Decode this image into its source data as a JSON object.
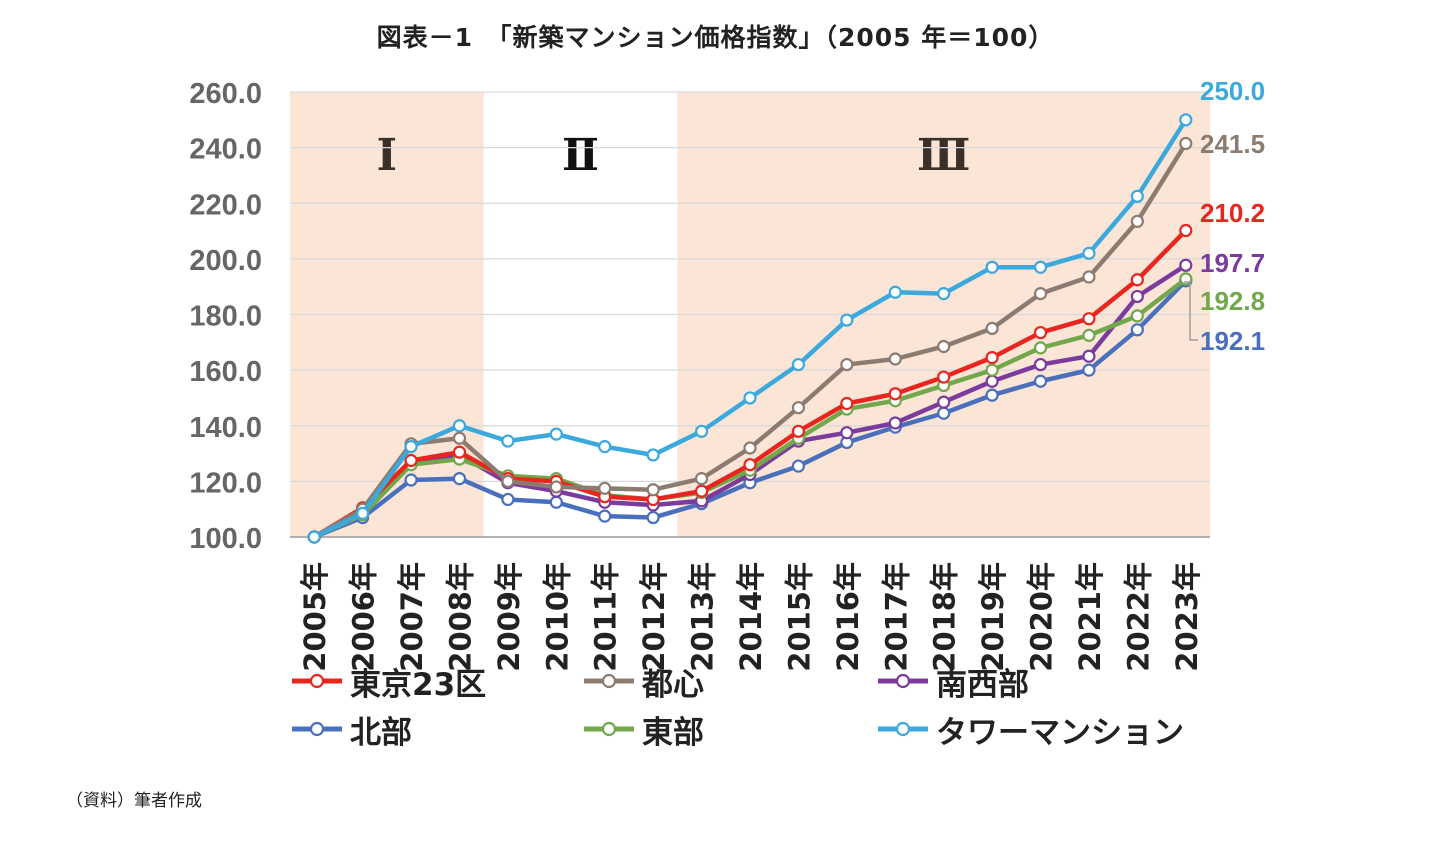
{
  "title": "図表－1　「新築マンション価格指数」（2005 年＝100）",
  "source": "（資料）筆者作成",
  "chart_data": {
    "type": "line",
    "title": "図表－1　「新築マンション価格指数」（2005 年＝100）",
    "categories": [
      "2005年",
      "2006年",
      "2007年",
      "2008年",
      "2009年",
      "2010年",
      "2011年",
      "2012年",
      "2013年",
      "2014年",
      "2015年",
      "2016年",
      "2017年",
      "2018年",
      "2019年",
      "2020年",
      "2021年",
      "2022年",
      "2023年"
    ],
    "ylim": [
      100,
      260
    ],
    "yticks": [
      "100.0",
      "120.0",
      "140.0",
      "160.0",
      "180.0",
      "200.0",
      "220.0",
      "240.0",
      "260.0"
    ],
    "grid": true,
    "legend_position": "bottom",
    "periods": [
      {
        "label": "Ⅰ",
        "start": "2005年",
        "end": "2008年",
        "shaded": true
      },
      {
        "label": "Ⅱ",
        "start": "2009年",
        "end": "2012年",
        "shaded": false
      },
      {
        "label": "Ⅲ",
        "start": "2013年",
        "end": "2023年",
        "shaded": true
      }
    ],
    "series": [
      {
        "name": "東京23区",
        "color": "#e8261f",
        "values": [
          100,
          110.5,
          127.5,
          130.5,
          121.0,
          120.0,
          114.5,
          113.5,
          116.5,
          126.0,
          138.0,
          148.0,
          151.5,
          157.5,
          164.5,
          173.5,
          178.5,
          192.5,
          210.2
        ],
        "end_label": "210.2"
      },
      {
        "name": "都心",
        "color": "#8c7b71",
        "values": [
          100,
          110.0,
          133.5,
          135.5,
          120.0,
          118.0,
          117.5,
          117.0,
          121.0,
          132.0,
          146.5,
          162.0,
          164.0,
          168.5,
          175.0,
          187.5,
          193.5,
          213.5,
          241.5
        ],
        "end_label": "241.5"
      },
      {
        "name": "南西部",
        "color": "#7b3b9c",
        "values": [
          100,
          108.5,
          126.5,
          129.5,
          119.5,
          116.5,
          112.5,
          111.5,
          113.0,
          122.5,
          134.5,
          137.5,
          141.0,
          148.5,
          156.0,
          162.0,
          165.0,
          186.5,
          197.7
        ],
        "end_label": "197.7"
      },
      {
        "name": "北部",
        "color": "#4a6fbd",
        "values": [
          100,
          107.0,
          120.5,
          121.0,
          113.5,
          112.5,
          107.5,
          107.0,
          112.0,
          119.5,
          125.5,
          134.0,
          139.5,
          144.5,
          151.0,
          156.0,
          160.0,
          174.5,
          192.1
        ],
        "end_label": "192.1"
      },
      {
        "name": "東部",
        "color": "#72a84b",
        "values": [
          100,
          108.0,
          126.0,
          128.0,
          122.0,
          121.0,
          115.0,
          113.5,
          116.0,
          124.0,
          135.5,
          146.0,
          149.0,
          154.5,
          160.0,
          168.0,
          172.5,
          179.5,
          192.8
        ],
        "end_label": "192.8"
      },
      {
        "name": "タワーマンション",
        "color": "#3ca9dd",
        "values": [
          100,
          108.5,
          132.5,
          140.0,
          134.5,
          137.0,
          132.5,
          129.5,
          138.0,
          150.0,
          162.0,
          178.0,
          188.0,
          187.5,
          197.0,
          197.0,
          202.0,
          222.5,
          250.0
        ],
        "end_label": "250.0"
      }
    ]
  }
}
